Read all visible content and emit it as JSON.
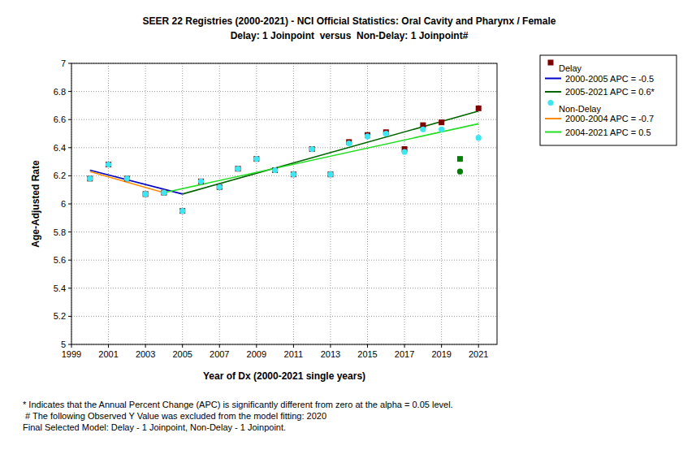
{
  "chart_data": {
    "type": "scatter",
    "title": "SEER 22 Registries (2000-2021) - NCI Official Statistics: Oral Cavity and Pharynx / Female",
    "subtitle": "Delay: 1 Joinpoint  versus  Non-Delay: 1 Joinpoint#",
    "x_label": "Year of Dx (2000-2021 single years)",
    "y_label": "Age-Adjusted Rate",
    "xlim": [
      1999,
      2022
    ],
    "xticks": [
      1999,
      2001,
      2003,
      2005,
      2007,
      2009,
      2011,
      2013,
      2015,
      2017,
      2019,
      2021
    ],
    "ylim": [
      5,
      7
    ],
    "yticks": [
      5,
      5.2,
      5.4,
      5.6,
      5.8,
      6,
      6.2,
      6.4,
      6.6,
      6.8,
      7
    ],
    "grid": true,
    "legend": "right",
    "series": [
      {
        "name": "Delay",
        "type": "scatter",
        "marker": "square",
        "color": "#800000",
        "colors": [
          "#800000",
          "#800000",
          "#800000",
          "#800000",
          "#800000",
          "#800000",
          "#800000",
          "#800000",
          "#800000",
          "#800000",
          "#800000",
          "#800000",
          "#800000",
          "#800000",
          "#800000",
          "#800000",
          "#800000",
          "#800000",
          "#800000",
          "#800000",
          "#008000",
          "#800000"
        ],
        "x": [
          2000,
          2001,
          2002,
          2003,
          2004,
          2005,
          2006,
          2007,
          2008,
          2009,
          2010,
          2011,
          2012,
          2013,
          2014,
          2015,
          2016,
          2017,
          2018,
          2019,
          2020,
          2021
        ],
        "values": [
          6.18,
          6.28,
          6.18,
          6.07,
          6.08,
          5.95,
          6.16,
          6.12,
          6.25,
          6.32,
          6.24,
          6.21,
          6.39,
          6.21,
          6.44,
          6.49,
          6.51,
          6.39,
          6.56,
          6.58,
          6.32,
          6.68
        ]
      },
      {
        "name": "2000-2005 APC = -0.5",
        "type": "line",
        "color": "#0000c8",
        "x": [
          2000,
          2005
        ],
        "values": [
          6.24,
          6.07
        ]
      },
      {
        "name": "2005-2021 APC = 0.6*",
        "type": "line",
        "color": "#006400",
        "x": [
          2005,
          2021
        ],
        "values": [
          6.07,
          6.66
        ]
      },
      {
        "name": "Non-Delay",
        "type": "scatter",
        "marker": "circle",
        "color": "#3ee6f2",
        "colors": [
          "#3ee6f2",
          "#3ee6f2",
          "#3ee6f2",
          "#3ee6f2",
          "#3ee6f2",
          "#3ee6f2",
          "#3ee6f2",
          "#3ee6f2",
          "#3ee6f2",
          "#3ee6f2",
          "#3ee6f2",
          "#3ee6f2",
          "#3ee6f2",
          "#3ee6f2",
          "#3ee6f2",
          "#3ee6f2",
          "#3ee6f2",
          "#3ee6f2",
          "#3ee6f2",
          "#3ee6f2",
          "#008000",
          "#3ee6f2"
        ],
        "x": [
          2000,
          2001,
          2002,
          2003,
          2004,
          2005,
          2006,
          2007,
          2008,
          2009,
          2010,
          2011,
          2012,
          2013,
          2014,
          2015,
          2016,
          2017,
          2018,
          2019,
          2020,
          2021
        ],
        "values": [
          6.18,
          6.28,
          6.18,
          6.07,
          6.08,
          5.95,
          6.16,
          6.12,
          6.25,
          6.32,
          6.24,
          6.21,
          6.39,
          6.21,
          6.43,
          6.48,
          6.5,
          6.37,
          6.53,
          6.53,
          6.23,
          6.47
        ]
      },
      {
        "name": "2000-2004 APC = -0.7",
        "type": "line",
        "color": "#ff8c00",
        "x": [
          2000,
          2004
        ],
        "values": [
          6.23,
          6.08
        ]
      },
      {
        "name": "2004-2021 APC = 0.5",
        "type": "line",
        "color": "#22dd22",
        "x": [
          2004,
          2021
        ],
        "values": [
          6.08,
          6.57
        ]
      }
    ],
    "notes": [
      "* Indicates that the Annual Percent Change (APC) is significantly different from zero at the alpha = 0.05 level.",
      " # The following Observed Y Value was excluded from the model fitting: 2020",
      "Final Selected Model: Delay - 1 Joinpoint, Non-Delay - 1 Joinpoint."
    ]
  }
}
